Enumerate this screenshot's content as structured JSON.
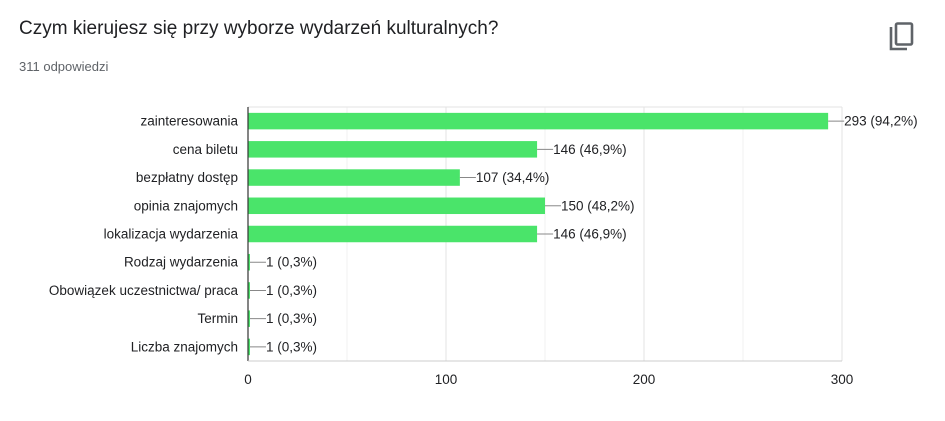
{
  "header": {
    "question": "Czym kierujesz się przy wyborze wydarzeń kulturalnych?",
    "responses": "311 odpowiedzi"
  },
  "icons": {
    "copy": "copy-icon"
  },
  "colors": {
    "bar": "#4ae46a",
    "axis": "#333333",
    "grid": "#e8e8e8",
    "text": "#202124"
  },
  "chart_data": {
    "type": "bar",
    "orientation": "horizontal",
    "categories": [
      "zainteresowania",
      "cena biletu",
      "bezpłatny dostęp",
      "opinia znajomych",
      "lokalizacja wydarzenia",
      "Rodzaj wydarzenia",
      "Obowiązek uczestnictwa/ praca",
      "Termin",
      "Liczba znajomych"
    ],
    "values": [
      293,
      146,
      107,
      150,
      146,
      1,
      1,
      1,
      1
    ],
    "data_labels": [
      "293 (94,2%)",
      "146 (46,9%)",
      "107 (34,4%)",
      "150 (48,2%)",
      "146 (46,9%)",
      "1 (0,3%)",
      "1 (0,3%)",
      "1 (0,3%)",
      "1 (0,3%)"
    ],
    "xlim": [
      0,
      300
    ],
    "xticks": [
      0,
      100,
      200,
      300
    ],
    "xtick_labels": [
      "0",
      "100",
      "200",
      "300"
    ],
    "grid": true,
    "legend": "none"
  }
}
